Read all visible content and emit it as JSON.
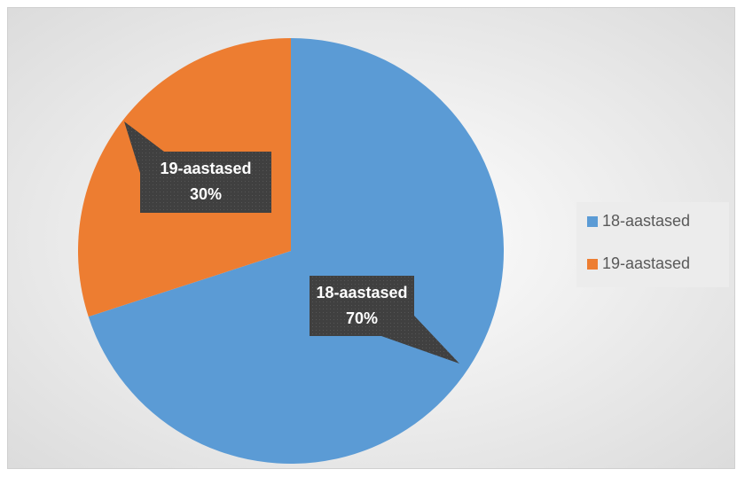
{
  "chart_data": {
    "type": "pie",
    "categories": [
      "18-aastased",
      "19-aastased"
    ],
    "values": [
      70,
      30
    ],
    "value_labels": [
      "70%",
      "30%"
    ],
    "colors": [
      "#5b9bd5",
      "#ed7d31"
    ],
    "legend": "right"
  }
}
